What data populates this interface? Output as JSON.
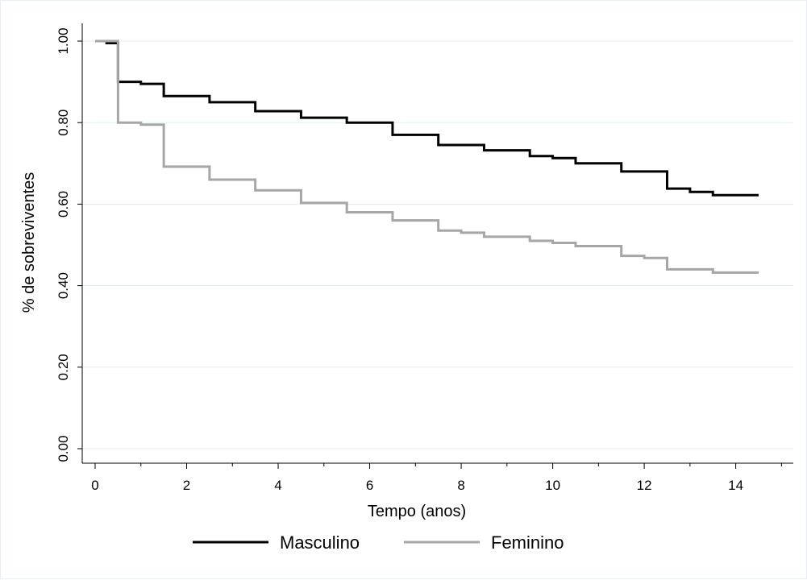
{
  "chart_data": {
    "type": "line",
    "step": true,
    "xlabel": "Tempo (anos)",
    "ylabel": "% de sobreviventes",
    "xlim": [
      0,
      14.5
    ],
    "ylim": [
      0,
      1
    ],
    "xticks": [
      "0",
      "2",
      "4",
      "6",
      "8",
      "10",
      "12",
      "14"
    ],
    "yticks": [
      "0.00",
      "0.20",
      "0.40",
      "0.60",
      "0.80",
      "1.00"
    ],
    "grid": "horizontal",
    "legend_position": "bottom",
    "series": [
      {
        "name": "Masculino",
        "color": "#000000",
        "x": [
          0,
          0.25,
          0.5,
          1.0,
          1.5,
          2.5,
          3.5,
          4.5,
          5.5,
          6.5,
          7.5,
          8.5,
          9.5,
          10.0,
          10.5,
          11.5,
          12.5,
          13.0,
          13.5,
          14.5
        ],
        "y": [
          1.0,
          0.995,
          0.9,
          0.895,
          0.865,
          0.85,
          0.828,
          0.812,
          0.8,
          0.77,
          0.745,
          0.732,
          0.718,
          0.713,
          0.7,
          0.68,
          0.638,
          0.63,
          0.622,
          0.622
        ]
      },
      {
        "name": "Feminino",
        "color": "#a6a6a6",
        "x": [
          0,
          0.5,
          1.0,
          1.5,
          2.5,
          3.5,
          4.5,
          5.5,
          6.5,
          7.5,
          8.0,
          8.5,
          9.5,
          10.0,
          10.5,
          11.5,
          12.0,
          12.5,
          13.5,
          14.5
        ],
        "y": [
          1.0,
          0.8,
          0.795,
          0.692,
          0.66,
          0.634,
          0.603,
          0.58,
          0.56,
          0.535,
          0.53,
          0.52,
          0.51,
          0.505,
          0.497,
          0.473,
          0.468,
          0.44,
          0.432,
          0.432
        ]
      }
    ]
  }
}
